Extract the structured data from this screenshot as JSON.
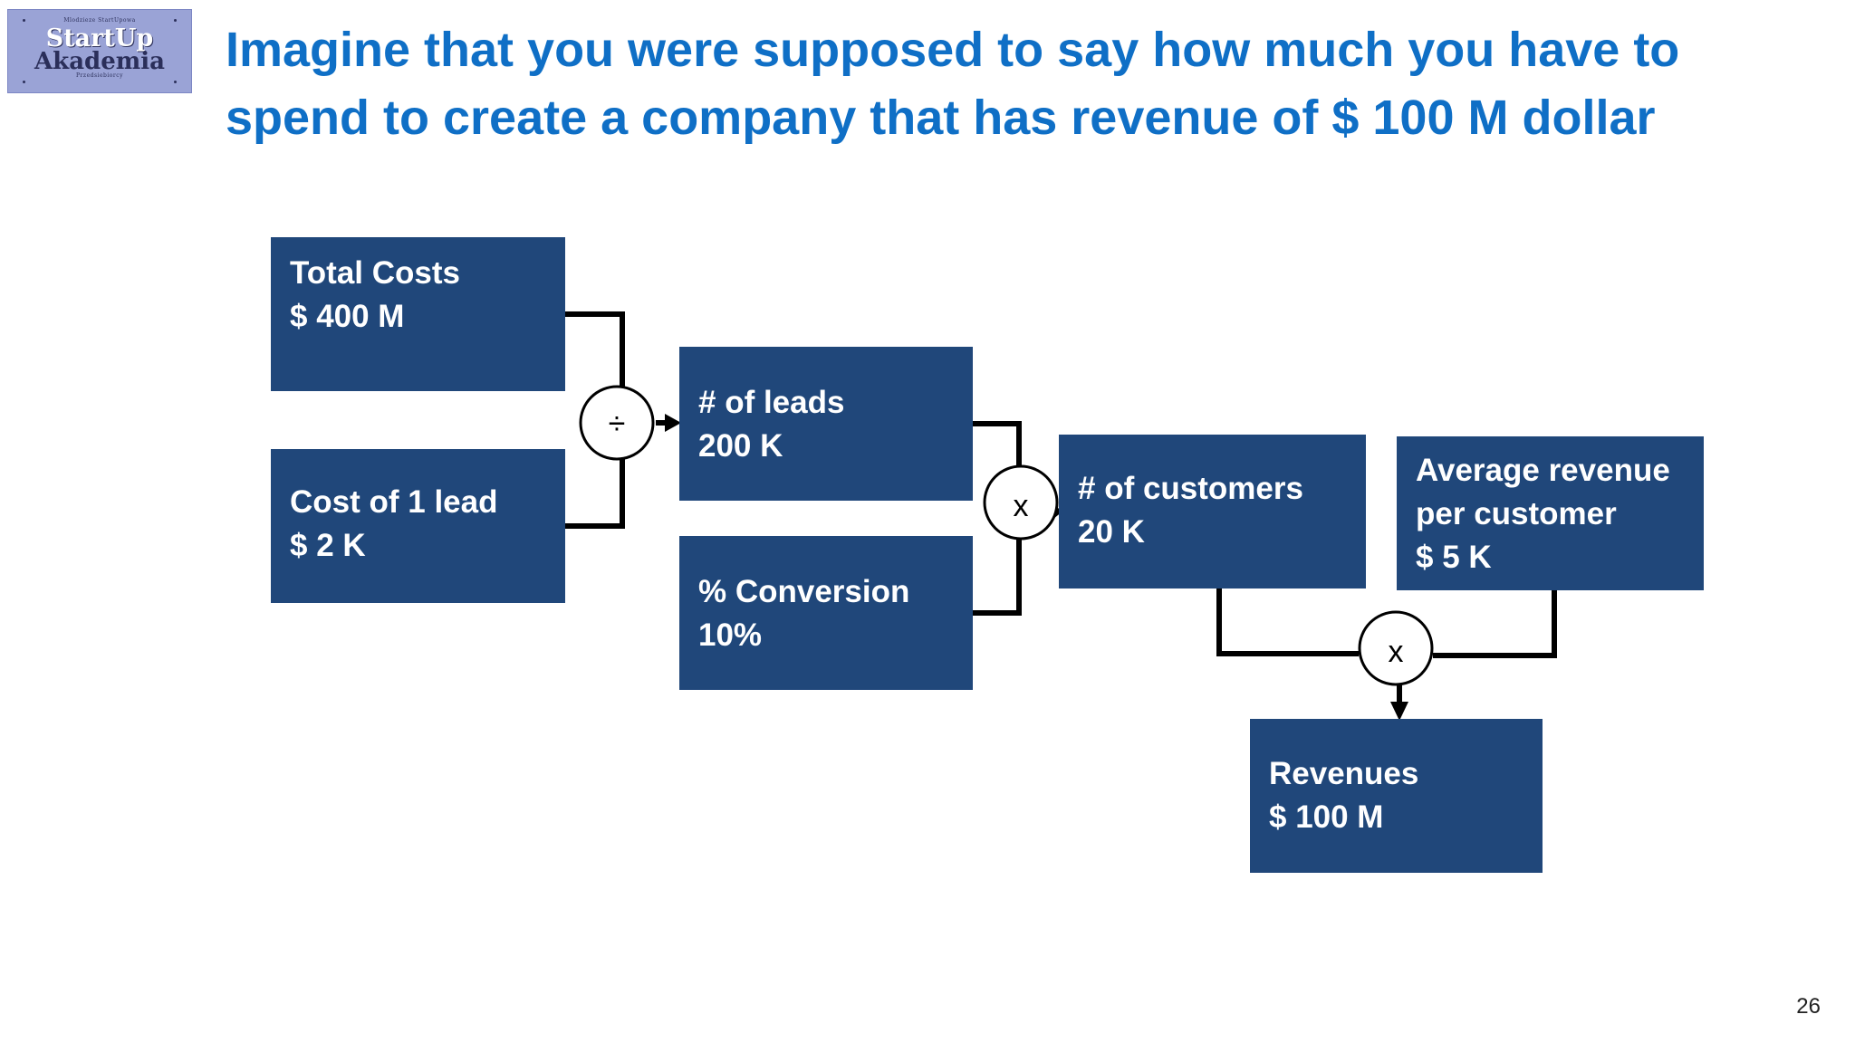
{
  "logo": {
    "top_text": "Mlodzieze StartUpowa",
    "brand_line1": "StartUp",
    "brand_line2": "Akademia",
    "bottom_text": "Przedsiebiorcy"
  },
  "title": "Imagine that you were supposed to say how much you have to spend to create a company that has revenue of $ 100 M dollar",
  "boxes": {
    "total_costs": {
      "label": "Total Costs",
      "value": "$ 400 M"
    },
    "cost_per_lead": {
      "label": "Cost of 1 lead",
      "value": "$ 2 K"
    },
    "leads": {
      "label": "# of leads",
      "value": "200 K"
    },
    "conversion": {
      "label": "% Conversion",
      "value": "10%"
    },
    "customers": {
      "label": "# of customers",
      "value": "20 K"
    },
    "avg_revenue": {
      "label_line1": "Average revenue",
      "label_line2": "per customer",
      "value": "$ 5 K"
    },
    "revenues": {
      "label": "Revenues",
      "value": "$ 100 M"
    }
  },
  "operators": {
    "divide": "÷",
    "multiply_1": "x",
    "multiply_2": "x"
  },
  "page_number": "26"
}
